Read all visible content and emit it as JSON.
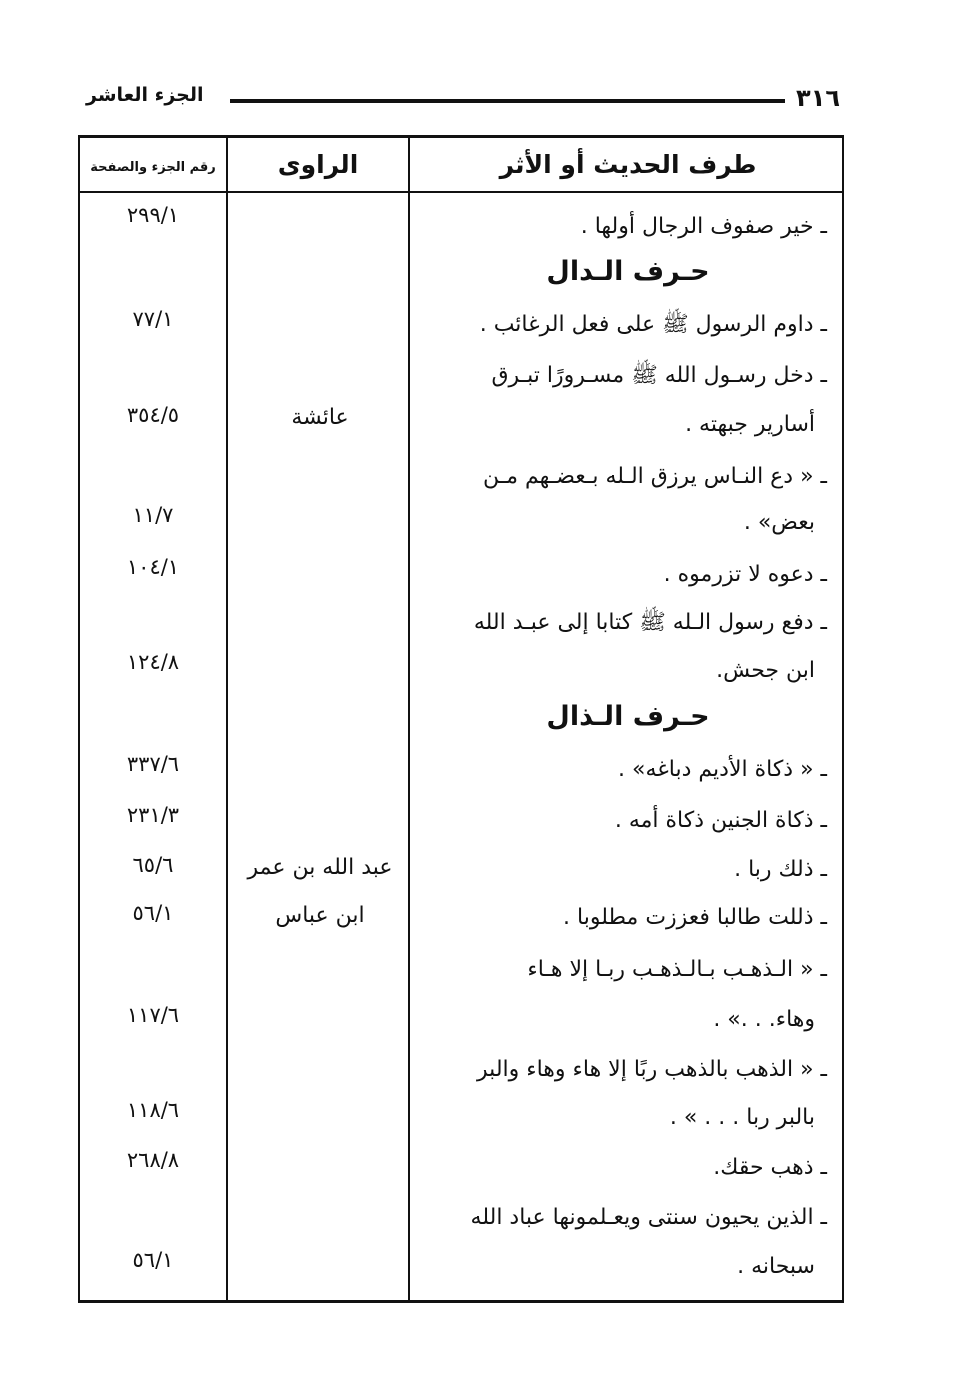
{
  "header": {
    "page_number": "٣١٦",
    "running_title": "الجزء العاشر"
  },
  "table": {
    "columns": [
      "طرف الحديث أو الأثر",
      "الراوى",
      "رقم الجزء والصفحة"
    ],
    "lines": [
      "ـ خير صفوف الرجال أولها .",
      "حـرف الـدال",
      "ـ داوم الرسول ﷺ على فعل الرغائب .",
      "ـ دخل رسـول الله ﷺ مسـرورًا تبـرق",
      "أسارير جبهته .",
      "ـ « دع النـاس يرزق الـله بـعضـهم مـن",
      "بعض» .",
      "ـ دعوه لا تزرموه .",
      "ـ دفع رسول الـله ﷺ كتابا إلى عبـد الله",
      "ابن جحش.",
      "حـرف الـذال",
      "ـ « ذكاة الأديم دباغه» .",
      "ـ ذكاة الجنين ذكاة أمه .",
      "ـ ذلك ربا .",
      "ـ ذللت طالبا فعززت مطلوبا .",
      "ـ « الـذهـب بـالـذهـب ربـا إلا هـاء",
      "وهاء. . .» .",
      "ـ « الذهب بالذهب ربًا إلا هاء وهاء والبر",
      "بالبر ربا . . . » .",
      "ـ ذهب حقك.",
      "ـ الذين يحيون سنتى ويعـلمونها عباد الله",
      "سبحانه ."
    ],
    "narrators": [
      "عائشة",
      "عبد الله بن عمر",
      "ابن عباس"
    ],
    "refs": [
      "٢٩٩/١",
      "٧٧/١",
      "٣٥٤/٥",
      "١١/٧",
      "١٠٤/١",
      "١٢٤/٨",
      "٣٣٧/٦",
      "٢٣١/٣",
      "٦٥/٦",
      "٥٦/١",
      "١١٧/٦",
      "١١٨/٦",
      "٢٦٨/٨",
      "٥٦/١"
    ]
  }
}
